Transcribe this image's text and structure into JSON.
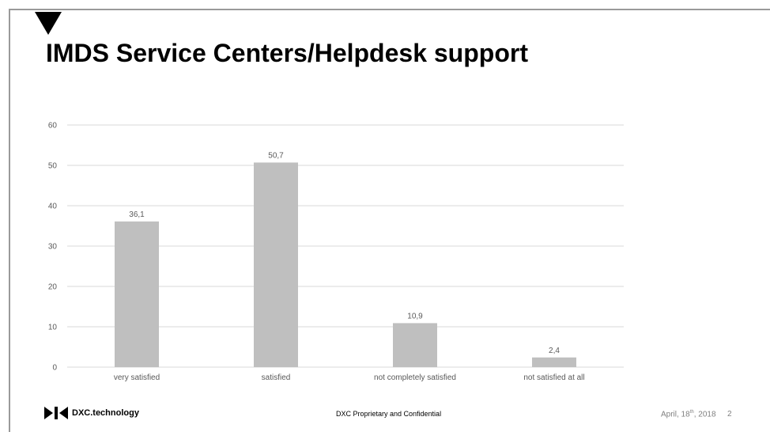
{
  "slide": {
    "title": "IMDS Service Centers/Helpdesk support"
  },
  "chart_data": {
    "type": "bar",
    "categories": [
      "very satisfied",
      "satisfied",
      "not completely satisfied",
      "not satisfied at all"
    ],
    "values": [
      36.1,
      50.7,
      10.9,
      2.4
    ],
    "data_labels": [
      "36,1",
      "50,7",
      "10,9",
      "2,4"
    ],
    "ylim": [
      0,
      60
    ],
    "yticks": [
      0,
      10,
      20,
      30,
      40,
      50,
      60
    ],
    "grid": true,
    "bar_color": "#bfbfbf",
    "gridline_color": "#d9d9d9"
  },
  "footer": {
    "logo_text": "DXC.technology",
    "center_text": "DXC Proprietary and Confidential",
    "date_prefix": "April, 18",
    "date_sup": "th",
    "date_suffix": ", 2018",
    "page_number": "2"
  }
}
